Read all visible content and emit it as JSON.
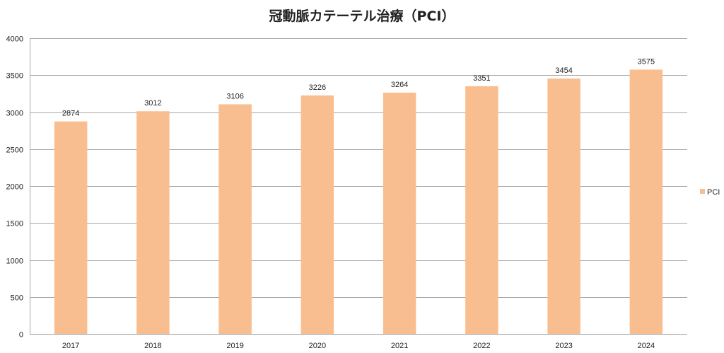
{
  "chart_data": {
    "type": "bar",
    "title": "冠動脈カテーテル治療（PCI）",
    "categories": [
      "2017",
      "2018",
      "2019",
      "2020",
      "2021",
      "2022",
      "2023",
      "2024"
    ],
    "series": [
      {
        "name": "PCI",
        "values": [
          2874,
          3012,
          3106,
          3226,
          3264,
          3351,
          3454,
          3575
        ],
        "color": "#f9be8f"
      }
    ],
    "ylim": [
      0,
      4000
    ],
    "yticks": [
      0,
      500,
      1000,
      1500,
      2000,
      2500,
      3000,
      3500,
      4000
    ],
    "grid": true,
    "legend_position": "right",
    "data_labels": true
  }
}
